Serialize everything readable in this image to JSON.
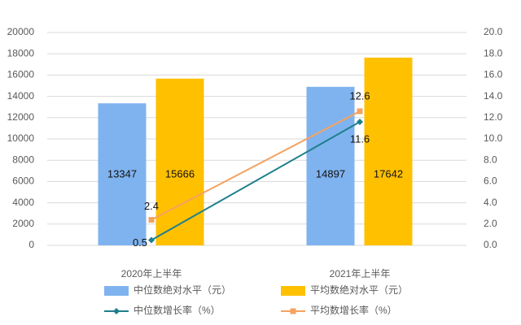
{
  "chart_data": {
    "type": "bar-line",
    "categories": [
      "2020年上半年",
      "2021年上半年"
    ],
    "series": [
      {
        "name": "中位数绝对水平（元）",
        "type": "bar",
        "color": "#7fb3ef",
        "values": [
          13347,
          14897
        ]
      },
      {
        "name": "平均数绝对水平（元）",
        "type": "bar",
        "color": "#ffc000",
        "values": [
          15666,
          17642
        ]
      },
      {
        "name": "中位数增长率（%）",
        "type": "line",
        "axis": "y2",
        "color": "#1f7f8c",
        "marker": "diamond",
        "values": [
          0.5,
          11.6
        ]
      },
      {
        "name": "平均数增长率（%）",
        "type": "line",
        "axis": "y2",
        "color": "#f4a261",
        "marker": "square",
        "values": [
          2.4,
          12.6
        ]
      }
    ],
    "ylim": [
      0,
      20000
    ],
    "yticks": [
      0,
      2000,
      4000,
      6000,
      8000,
      10000,
      12000,
      14000,
      16000,
      18000,
      20000
    ],
    "y2lim": [
      0,
      20
    ],
    "y2ticks": [
      {
        "value": 0,
        "label": "0.0"
      },
      {
        "value": 2,
        "label": "2.0"
      },
      {
        "value": 4,
        "label": "4.0"
      },
      {
        "value": 6,
        "label": "6.0"
      },
      {
        "value": 8,
        "label": "8.0"
      },
      {
        "value": 10,
        "label": "10.0"
      },
      {
        "value": 12,
        "label": "12.0"
      },
      {
        "value": 14,
        "label": "14.0"
      },
      {
        "value": 16,
        "label": "16.0"
      },
      {
        "value": 18,
        "label": "18.0"
      },
      {
        "value": 20,
        "label": "20.0"
      }
    ],
    "grid": true
  }
}
